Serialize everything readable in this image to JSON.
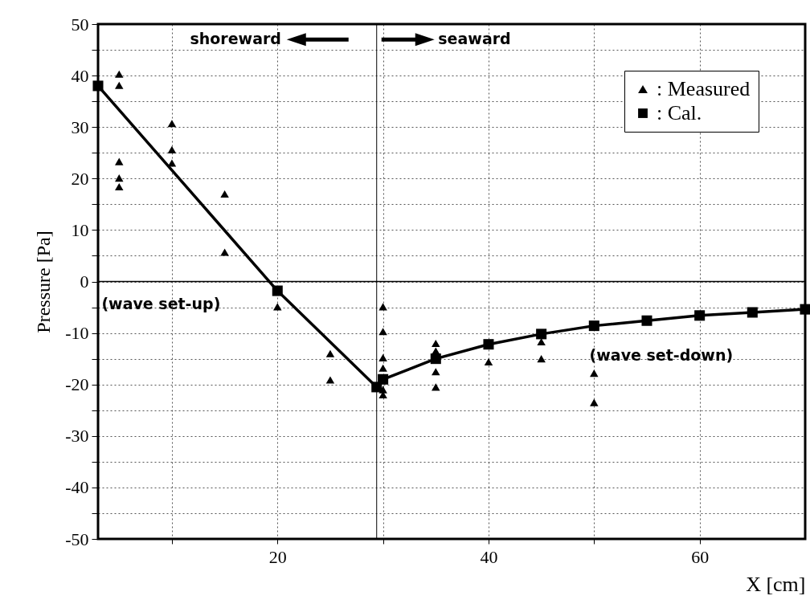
{
  "chart_data": {
    "type": "scatter",
    "xlabel": "X [cm]",
    "ylabel": "Pressure [Pa]",
    "xlim": [
      3,
      70
    ],
    "ylim": [
      -50,
      50
    ],
    "xticks": [
      {
        "value": 10,
        "label": null
      },
      20,
      {
        "value": 30,
        "label": null
      },
      40,
      {
        "value": 50,
        "label": null
      },
      60
    ],
    "yticks": [
      -50,
      {
        "value": -45,
        "label": null
      },
      -40,
      {
        "value": -35,
        "label": null
      },
      -30,
      {
        "value": -25,
        "label": null
      },
      -20,
      {
        "value": -15,
        "label": null
      },
      -10,
      {
        "value": -5,
        "label": null
      },
      0,
      {
        "value": 5,
        "label": null
      },
      10,
      {
        "value": 15,
        "label": null
      },
      20,
      {
        "value": 25,
        "label": null
      },
      30,
      {
        "value": 35,
        "label": null
      },
      40,
      {
        "value": 45,
        "label": null
      },
      50
    ],
    "grid": true,
    "legend": "top right",
    "series": [
      {
        "name": ": Measured",
        "marker": "triangle",
        "color": "#000000",
        "x": [
          5,
          5,
          5,
          5,
          5,
          10,
          10,
          10,
          15,
          15,
          20,
          25,
          25,
          30,
          30,
          30,
          30,
          30,
          30,
          35,
          35,
          35,
          35,
          40,
          45,
          45,
          50,
          50
        ],
        "values": [
          40.3,
          38.1,
          23.3,
          20.1,
          18.4,
          30.7,
          25.6,
          23.0,
          17.0,
          5.7,
          -4.9,
          -14.0,
          -19.1,
          -4.9,
          -9.7,
          -14.8,
          -16.8,
          -21.0,
          -22.0,
          -12.0,
          -13.5,
          -17.5,
          -20.5,
          -15.6,
          -11.7,
          -15.0,
          -17.8,
          -23.5
        ]
      },
      {
        "name": ": Cal.",
        "type": "line",
        "marker": "square",
        "line_style": "solid",
        "color": "#000000",
        "x": [
          3,
          20,
          29.4,
          30,
          35,
          40,
          45,
          50,
          55,
          60,
          65,
          70
        ],
        "values": [
          38.0,
          -1.8,
          -20.5,
          -19.0,
          -15.0,
          -12.2,
          -10.2,
          -8.6,
          -7.6,
          -6.6,
          -6.0,
          -5.4
        ]
      }
    ],
    "ref_lines": [
      {
        "axis": "y",
        "value": 0,
        "label": null
      },
      {
        "axis": "x",
        "value": 29.4,
        "label": null
      }
    ],
    "annotations": [
      "shoreward",
      "seaward",
      "(wave set-up)",
      "(wave set-down)"
    ]
  }
}
